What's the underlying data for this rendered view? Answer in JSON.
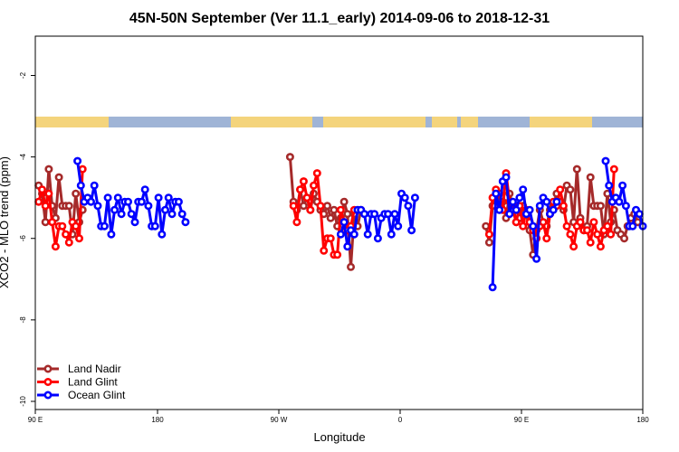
{
  "chart_data": {
    "type": "line",
    "title": "45N-50N September (Ver 11.1_early)   2014-09-06 to 2018-12-31",
    "xlabel": "Longitude",
    "ylabel": "XCO2 - MLO trend (ppm)",
    "xlim": [
      90,
      450
    ],
    "ylim": [
      -10,
      -1
    ],
    "x_tick_values": [
      90,
      180,
      270,
      360,
      450,
      540
    ],
    "x_tick_labels": [
      "90 E",
      "180",
      "90 W",
      "0",
      "90 E",
      "180"
    ],
    "y_tick_values": [
      -2,
      -4,
      -6,
      -8,
      -10
    ],
    "y_tick_labels": [
      "-2",
      "-4",
      "-6",
      "-8",
      "-10"
    ],
    "grid": false,
    "legend_position": "bottom-left",
    "colors": {
      "land_nadir": "#a52a2a",
      "land_glint": "#ff0000",
      "ocean_glint": "#0000ff",
      "map_land": "#f4d47c",
      "map_ocean": "#9fb4d6"
    },
    "series": [
      {
        "name": "Land Nadir",
        "color": "#a52a2a",
        "segments": [
          {
            "x": [
              92,
              94,
              96,
              98,
              100,
              102,
              104,
              106,
              108,
              110,
              112,
              114,
              116,
              118
            ],
            "y": [
              -4.7,
              -4.9,
              -5.6,
              -4.3,
              -5.2,
              -5.5,
              -4.5,
              -5.2,
              -5.2,
              -5.2,
              -5.9,
              -4.9,
              -5.6,
              -5.3
            ]
          },
          {
            "x": [
              241,
              243,
              245,
              247,
              249,
              251,
              253,
              255,
              257,
              259,
              261,
              263,
              265,
              267,
              269,
              271,
              273,
              275,
              277,
              279,
              281,
              283
            ],
            "y": [
              -4.0,
              -5.1,
              -5.3,
              -4.8,
              -5.2,
              -5.0,
              -5.3,
              -4.9,
              -5.1,
              -5.3,
              -5.4,
              -5.2,
              -5.5,
              -5.3,
              -5.7,
              -5.5,
              -5.1,
              -5.4,
              -6.7,
              -5.4,
              -5.7,
              -5.3
            ]
          },
          {
            "x": [
              357,
              359,
              361,
              363,
              365,
              367,
              369,
              371,
              373,
              375,
              377,
              379,
              381,
              383,
              385,
              387,
              389,
              391,
              393,
              395,
              397,
              399,
              401,
              403,
              405,
              407,
              409,
              411,
              413,
              415,
              417,
              419,
              421,
              423,
              425,
              427,
              429,
              431,
              433,
              435,
              437,
              439,
              441,
              443,
              445,
              447
            ],
            "y": [
              -5.7,
              -6.1,
              -5.2,
              -5.0,
              -5.3,
              -5.1,
              -5.5,
              -4.9,
              -5.2,
              -5.6,
              -5.5,
              -5.2,
              -5.4,
              -5.8,
              -6.4,
              -5.8,
              -5.3,
              -5.6,
              -5.7,
              -5.3,
              -5.2,
              -4.9,
              -5.1,
              -5.3,
              -4.7,
              -4.8,
              -5.6,
              -4.3,
              -5.5,
              -5.8,
              -5.7,
              -4.5,
              -5.2,
              -5.2,
              -5.2,
              -5.9,
              -4.9,
              -5.6,
              -5.3,
              -5.8,
              -5.9,
              -6.0,
              -5.7,
              -5.5,
              -5.4,
              -5.6
            ]
          }
        ]
      },
      {
        "name": "Land Glint",
        "color": "#ff0000",
        "segments": [
          {
            "x": [
              92,
              94,
              96,
              98,
              100,
              102,
              104,
              106,
              108,
              110,
              112,
              114,
              116,
              118
            ],
            "y": [
              -5.1,
              -4.8,
              -5.2,
              -4.9,
              -5.6,
              -6.2,
              -5.7,
              -5.7,
              -5.9,
              -6.1,
              -5.6,
              -5.7,
              -6.0,
              -4.3
            ]
          },
          {
            "x": [
              243,
              245,
              247,
              249,
              251,
              253,
              255,
              257,
              259,
              261,
              263,
              265,
              267,
              269,
              271,
              273,
              275,
              277,
              279
            ],
            "y": [
              -5.2,
              -5.6,
              -4.8,
              -4.6,
              -5.0,
              -5.3,
              -4.7,
              -4.4,
              -5.2,
              -6.3,
              -6.0,
              -6.0,
              -6.4,
              -6.4,
              -5.3,
              -5.6,
              -5.8,
              -5.7,
              -5.3
            ]
          },
          {
            "x": [
              359,
              361,
              363,
              365,
              367,
              369,
              371,
              373,
              375,
              377,
              379,
              381,
              383,
              385,
              387,
              389,
              391,
              393,
              395,
              397,
              399,
              401,
              403,
              405,
              407,
              409,
              411,
              413,
              415,
              417,
              419,
              421,
              423,
              425,
              427,
              429,
              431,
              433
            ],
            "y": [
              -5.9,
              -5.0,
              -4.8,
              -4.9,
              -5.3,
              -4.4,
              -5.1,
              -5.3,
              -5.6,
              -5.2,
              -5.7,
              -5.3,
              -5.6,
              -5.8,
              -6.0,
              -5.7,
              -5.6,
              -6.0,
              -5.4,
              -5.1,
              -5.2,
              -4.8,
              -5.2,
              -5.7,
              -5.9,
              -6.2,
              -5.7,
              -5.6,
              -5.8,
              -5.8,
              -6.1,
              -5.6,
              -5.9,
              -6.2,
              -5.8,
              -5.7,
              -5.9,
              -4.3
            ]
          }
        ]
      },
      {
        "name": "Ocean Glint",
        "color": "#0000ff",
        "segments": [
          {
            "x": [
              115,
              117,
              119,
              121,
              123,
              125,
              127,
              129,
              131,
              133,
              135,
              137,
              139,
              141,
              143,
              145,
              147,
              149,
              151,
              153,
              155,
              157,
              159,
              161,
              163,
              165,
              167,
              169,
              171,
              173,
              175,
              177,
              179
            ],
            "y": [
              -4.1,
              -4.7,
              -5.1,
              -5.0,
              -5.1,
              -4.7,
              -5.2,
              -5.7,
              -5.7,
              -5.0,
              -5.9,
              -5.3,
              -5.0,
              -5.4,
              -5.1,
              -5.1,
              -5.4,
              -5.6,
              -5.1,
              -5.1,
              -4.8,
              -5.2,
              -5.7,
              -5.7,
              -5.0,
              -5.9,
              -5.3,
              -5.0,
              -5.4,
              -5.1,
              -5.1,
              -5.4,
              -5.6
            ]
          },
          {
            "x": [
              271,
              273,
              275,
              277,
              279,
              281,
              283,
              285,
              287,
              289,
              291,
              293,
              295,
              297,
              299,
              301,
              303,
              305,
              307,
              309,
              311,
              313,
              315
            ],
            "y": [
              -5.9,
              -5.6,
              -6.2,
              -5.8,
              -5.9,
              -5.3,
              -5.3,
              -5.4,
              -5.9,
              -5.4,
              -5.4,
              -6.0,
              -5.5,
              -5.4,
              -5.4,
              -5.9,
              -5.4,
              -5.7,
              -4.9,
              -5.0,
              -5.2,
              -5.8,
              -5.0
            ]
          },
          {
            "x": [
              361,
              363,
              365,
              367,
              369,
              371,
              373,
              375,
              377,
              379,
              381,
              383,
              385,
              387,
              389,
              391,
              393,
              395,
              397,
              399
            ],
            "y": [
              -7.2,
              -4.9,
              -5.3,
              -4.6,
              -4.5,
              -5.4,
              -5.1,
              -5.3,
              -5.0,
              -4.8,
              -5.4,
              -5.3,
              -5.7,
              -6.5,
              -5.2,
              -5.0,
              -5.1,
              -5.4,
              -5.3,
              -5.1
            ]
          },
          {
            "x": [
              428,
              430,
              432,
              434,
              436,
              438,
              440,
              442,
              444,
              446,
              448,
              450
            ],
            "y": [
              -4.1,
              -4.7,
              -5.1,
              -5.0,
              -5.1,
              -4.7,
              -5.2,
              -5.7,
              -5.7,
              -5.3,
              -5.4,
              -5.7
            ]
          }
        ]
      }
    ]
  }
}
